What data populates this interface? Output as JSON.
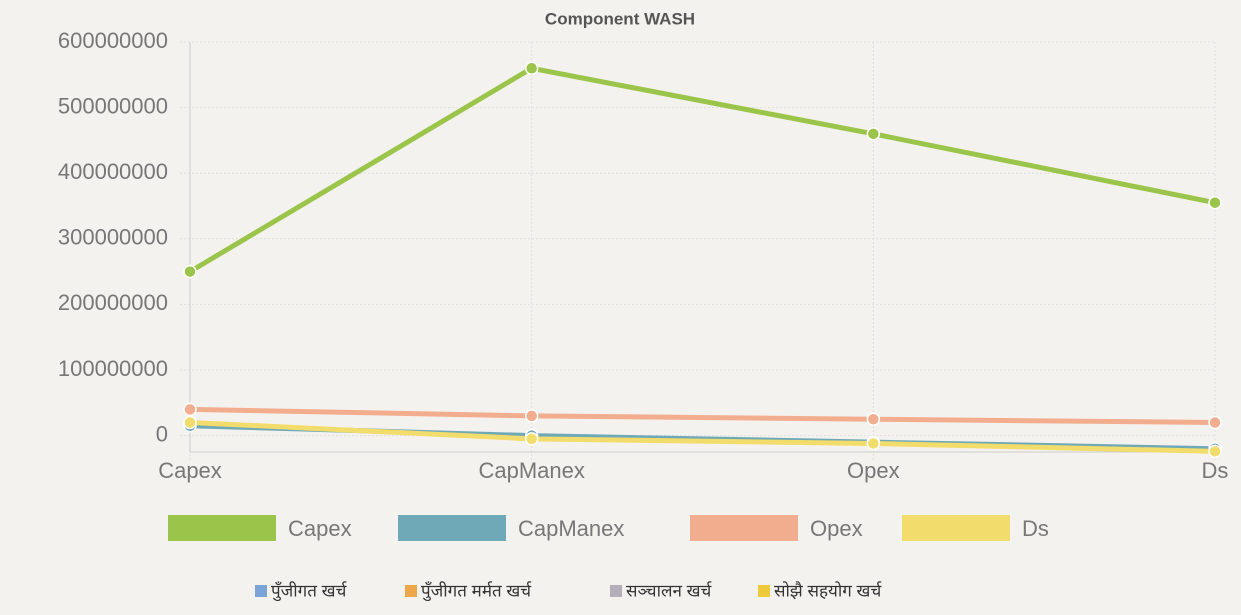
{
  "chart_data": {
    "type": "line",
    "title": "Component WASH",
    "categories": [
      "Capex",
      "CapManex",
      "Opex",
      "Ds"
    ],
    "series": [
      {
        "name": "Capex",
        "color": "#9bc54a",
        "values": [
          250000000,
          560000000,
          460000000,
          355000000
        ]
      },
      {
        "name": "CapManex",
        "color": "#6fa9b8",
        "values": [
          15000000,
          0,
          -10000000,
          -20000000
        ]
      },
      {
        "name": "Opex",
        "color": "#f2ad8f",
        "values": [
          40000000,
          30000000,
          25000000,
          20000000
        ]
      },
      {
        "name": "Ds",
        "color": "#f2dc6b",
        "values": [
          20000000,
          -5000000,
          -12000000,
          -24000000
        ]
      }
    ],
    "ylim": [
      -25000000,
      600000000
    ],
    "yticks": [
      0,
      100000000,
      200000000,
      300000000,
      400000000,
      500000000,
      600000000
    ],
    "grid": true,
    "legend2": [
      {
        "name": "पुँजीगत खर्च",
        "color": "#7ba3d6"
      },
      {
        "name": "पुँजीगत मर्मत खर्च",
        "color": "#eda64a"
      },
      {
        "name": "सञ्चालन खर्च",
        "color": "#b3aeb8"
      },
      {
        "name": "सोझै सहयोग खर्च",
        "color": "#f0c93a"
      }
    ]
  }
}
